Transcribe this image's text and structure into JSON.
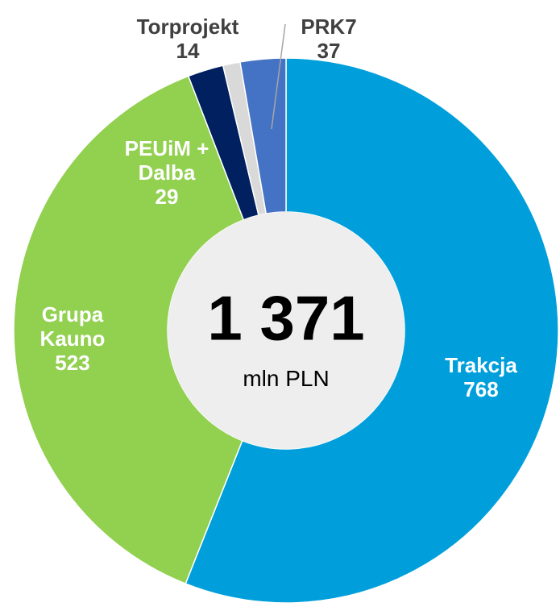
{
  "chart_data": {
    "type": "donut",
    "categories": [
      "Trakcja",
      "Grupa Kauno",
      "PEUiM + Dalba",
      "Torprojekt",
      "PRK7"
    ],
    "values": [
      768,
      523,
      29,
      14,
      37
    ],
    "colors": [
      "#009fdb",
      "#92d050",
      "#002060",
      "#d9d9d9",
      "#4472c4"
    ],
    "total": "1 371",
    "unit": "mln PLN"
  }
}
